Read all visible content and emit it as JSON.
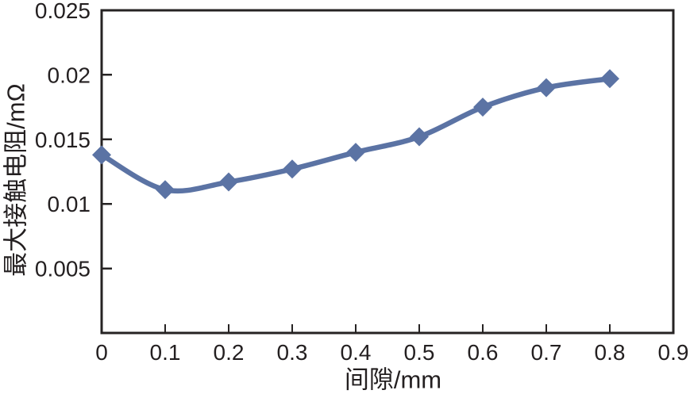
{
  "chart_data": {
    "type": "line",
    "title": "",
    "xlabel": "间隙/mm",
    "ylabel": "最大接触电阻/mΩ",
    "x": [
      0,
      0.1,
      0.2,
      0.3,
      0.4,
      0.5,
      0.6,
      0.7,
      0.8
    ],
    "y": [
      0.0138,
      0.0111,
      0.0117,
      0.0127,
      0.014,
      0.0152,
      0.0175,
      0.019,
      0.0197
    ],
    "xlim": [
      0,
      0.9
    ],
    "ylim": [
      0,
      0.025
    ],
    "x_tick_values": [
      0,
      0.1,
      0.2,
      0.3,
      0.4,
      0.5,
      0.6,
      0.7,
      0.8,
      0.9
    ],
    "x_tick_labels": [
      "0",
      "0.1",
      "0.2",
      "0.3",
      "0.4",
      "0.5",
      "0.6",
      "0.7",
      "0.8",
      "0.9"
    ],
    "y_tick_values": [
      0.005,
      0.01,
      0.015,
      0.02,
      0.025
    ],
    "y_tick_labels": [
      "0.005",
      "0.01",
      "0.015",
      "0.02",
      "0.025"
    ],
    "grid": false,
    "legend": "none",
    "marker": "diamond",
    "line_color": "#5b73a4",
    "axis_color": "#262323",
    "text_color": "#231f20",
    "background": "#ffffff"
  }
}
